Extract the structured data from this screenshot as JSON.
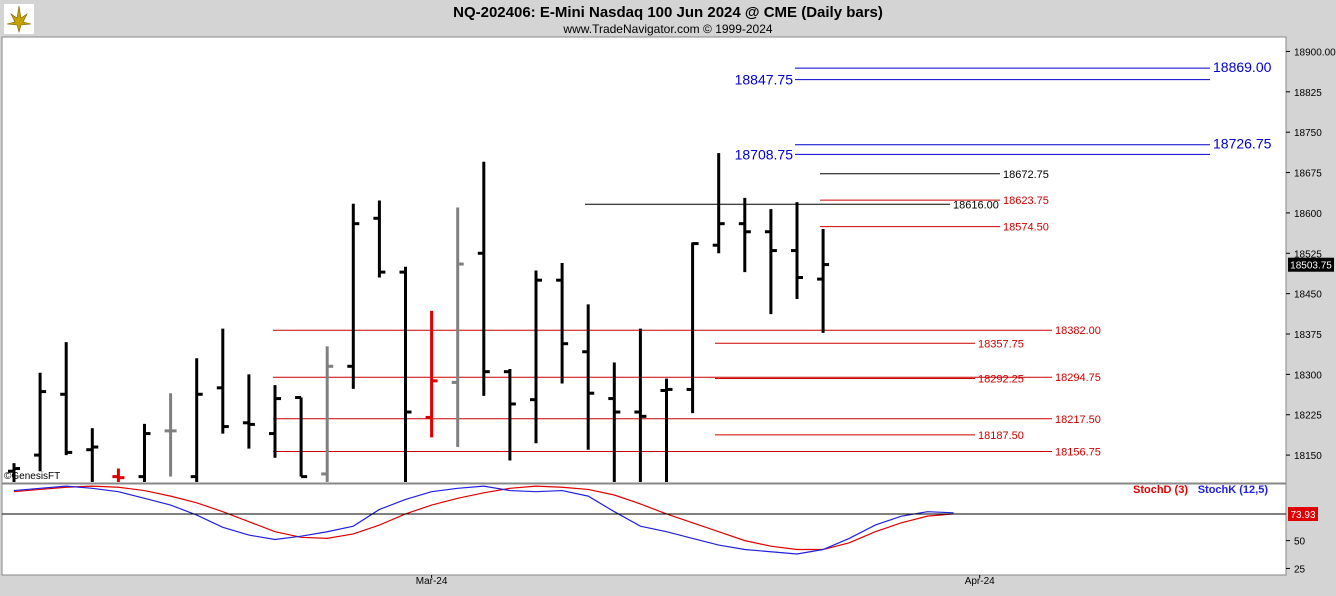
{
  "header": {
    "title": "NQ-202406:  E-Mini Nasdaq 100 Jun 2024 @ CME  (Daily bars)",
    "subtitle": "www.TradeNavigator.com © 1999-2024",
    "watermark": "©GenesisFT"
  },
  "colors": {
    "background": "#ffffff",
    "frame": "#d4d4d4",
    "bar_up": "#000000",
    "bar_alt": "#808080",
    "bar_red": "#e00000",
    "level_red": "#cc0000",
    "level_blue": "#0000cc",
    "stoch_d": "#e00000",
    "stoch_k": "#2020e0"
  },
  "chart_data": [
    {
      "type": "ohlc",
      "title": "NQ-202406:  E-Mini Nasdaq 100 Jun 2024 @ CME  (Daily bars)",
      "ylim": [
        18100,
        18925
      ],
      "y_ticks": [
        18150,
        18225,
        18300,
        18375,
        18450,
        18525,
        18600,
        18675,
        18750,
        18825,
        18900
      ],
      "y_tick_labels": [
        "18150",
        "18225",
        "18300",
        "18375",
        "18450",
        "18525",
        "18600",
        "18675",
        "18750",
        "18825",
        "18900.00"
      ],
      "last_price": "18503.75",
      "x_labels": [
        {
          "label": "Mar-24",
          "bar": 16
        },
        {
          "label": "Apr-24",
          "bar": 37
        }
      ],
      "bars": [
        {
          "o": 18120,
          "h": 18135,
          "l": 18100,
          "c": 18125,
          "color": "black"
        },
        {
          "o": 18150,
          "h": 18303,
          "l": 18120,
          "c": 18268,
          "color": "black"
        },
        {
          "o": 18263,
          "h": 18360,
          "l": 18150,
          "c": 18155,
          "color": "black"
        },
        {
          "o": 18160,
          "h": 18200,
          "l": 18100,
          "c": 18165,
          "color": "black"
        },
        {
          "o": 18110,
          "h": 18125,
          "l": 18100,
          "c": 18108,
          "color": "red"
        },
        {
          "o": 18110,
          "h": 18208,
          "l": 18100,
          "c": 18190,
          "color": "black"
        },
        {
          "o": 18195,
          "h": 18265,
          "l": 18110,
          "c": 18195,
          "color": "gray"
        },
        {
          "o": 18110,
          "h": 18330,
          "l": 18100,
          "c": 18263,
          "color": "black"
        },
        {
          "o": 18275,
          "h": 18385,
          "l": 18190,
          "c": 18203,
          "color": "black"
        },
        {
          "o": 18210,
          "h": 18300,
          "l": 18162,
          "c": 18207,
          "color": "black"
        },
        {
          "o": 18190,
          "h": 18280,
          "l": 18145,
          "c": 18255,
          "color": "black"
        },
        {
          "o": 18257,
          "h": 18257,
          "l": 18110,
          "c": 18110,
          "color": "black"
        },
        {
          "o": 18115,
          "h": 18352,
          "l": 18100,
          "c": 18315,
          "color": "gray"
        },
        {
          "o": 18315,
          "h": 18617,
          "l": 18273,
          "c": 18580,
          "color": "black"
        },
        {
          "o": 18590,
          "h": 18623,
          "l": 18480,
          "c": 18490,
          "color": "black"
        },
        {
          "o": 18490,
          "h": 18500,
          "l": 18100,
          "c": 18230,
          "color": "black"
        },
        {
          "o": 18220,
          "h": 18418,
          "l": 18183,
          "c": 18288,
          "color": "red"
        },
        {
          "o": 18285,
          "h": 18610,
          "l": 18165,
          "c": 18505,
          "color": "gray"
        },
        {
          "o": 18525,
          "h": 18695,
          "l": 18260,
          "c": 18305,
          "color": "black"
        },
        {
          "o": 18305,
          "h": 18310,
          "l": 18140,
          "c": 18245,
          "color": "black"
        },
        {
          "o": 18253,
          "h": 18493,
          "l": 18172,
          "c": 18475,
          "color": "black"
        },
        {
          "o": 18475,
          "h": 18507,
          "l": 18283,
          "c": 18357,
          "color": "black"
        },
        {
          "o": 18342,
          "h": 18430,
          "l": 18160,
          "c": 18265,
          "color": "black"
        },
        {
          "o": 18255,
          "h": 18322,
          "l": 18100,
          "c": 18230,
          "color": "black"
        },
        {
          "o": 18230,
          "h": 18385,
          "l": 18100,
          "c": 18222,
          "color": "black"
        },
        {
          "o": 18270,
          "h": 18292,
          "l": 18100,
          "c": 18272,
          "color": "black"
        },
        {
          "o": 18272,
          "h": 18545,
          "l": 18228,
          "c": 18543,
          "color": "black"
        },
        {
          "o": 18540,
          "h": 18711,
          "l": 18525,
          "c": 18580,
          "color": "black"
        },
        {
          "o": 18580,
          "h": 18628,
          "l": 18490,
          "c": 18565,
          "color": "black"
        },
        {
          "o": 18565,
          "h": 18607,
          "l": 18412,
          "c": 18530,
          "color": "black"
        },
        {
          "o": 18530,
          "h": 18620,
          "l": 18440,
          "c": 18480,
          "color": "black"
        },
        {
          "o": 18477,
          "h": 18570,
          "l": 18377,
          "c": 18504,
          "color": "black"
        }
      ],
      "levels": [
        {
          "value": 18869.0,
          "label": "18869.00",
          "color": "blue",
          "side": "right"
        },
        {
          "value": 18847.75,
          "label": "18847.75",
          "color": "blue",
          "side": "left"
        },
        {
          "value": 18726.75,
          "label": "18726.75",
          "color": "blue",
          "side": "right"
        },
        {
          "value": 18708.75,
          "label": "18708.75",
          "color": "blue",
          "side": "left"
        },
        {
          "value": 18672.75,
          "label": "18672.75",
          "color": "black",
          "side": "right"
        },
        {
          "value": 18623.75,
          "label": "18623.75",
          "color": "red",
          "side": "right"
        },
        {
          "value": 18616.0,
          "label": "18616.00",
          "color": "black",
          "side": "right"
        },
        {
          "value": 18574.5,
          "label": "18574.50",
          "color": "red",
          "side": "right"
        },
        {
          "value": 18382.0,
          "label": "18382.00",
          "color": "red",
          "side": "right"
        },
        {
          "value": 18357.75,
          "label": "18357.75",
          "color": "red",
          "side": "right"
        },
        {
          "value": 18294.75,
          "label": "18294.75",
          "color": "red",
          "side": "right"
        },
        {
          "value": 18292.25,
          "label": "18292.25",
          "color": "red",
          "side": "right"
        },
        {
          "value": 18217.5,
          "label": "18217.50",
          "color": "red",
          "side": "right"
        },
        {
          "value": 18187.5,
          "label": "18187.50",
          "color": "red",
          "side": "right"
        },
        {
          "value": 18156.75,
          "label": "18156.75",
          "color": "red",
          "side": "right"
        }
      ]
    },
    {
      "type": "line",
      "title": "",
      "ylim": [
        20,
        100
      ],
      "y_ticks": [
        25,
        50
      ],
      "y_tick_labels": [
        "25",
        "50"
      ],
      "reference_line": 73.93,
      "last_value": "73.93",
      "series": [
        {
          "name": "StochD (3)",
          "color": "red",
          "values": [
            94,
            96,
            98,
            99,
            98,
            95,
            90,
            84,
            76,
            67,
            58,
            53,
            52,
            56,
            64,
            74,
            82,
            88,
            93,
            97,
            99,
            98,
            96,
            91,
            83,
            74,
            66,
            58,
            50,
            45,
            42,
            42,
            48,
            58,
            66,
            72,
            74
          ]
        },
        {
          "name": "StochK (12,5)",
          "color": "blue",
          "values": [
            95,
            97,
            99,
            97,
            94,
            88,
            82,
            73,
            62,
            55,
            51,
            54,
            58,
            63,
            78,
            87,
            94,
            97,
            99,
            95,
            94,
            95,
            90,
            76,
            63,
            58,
            52,
            46,
            42,
            40,
            38,
            42,
            52,
            64,
            72,
            76,
            75
          ]
        }
      ]
    }
  ]
}
